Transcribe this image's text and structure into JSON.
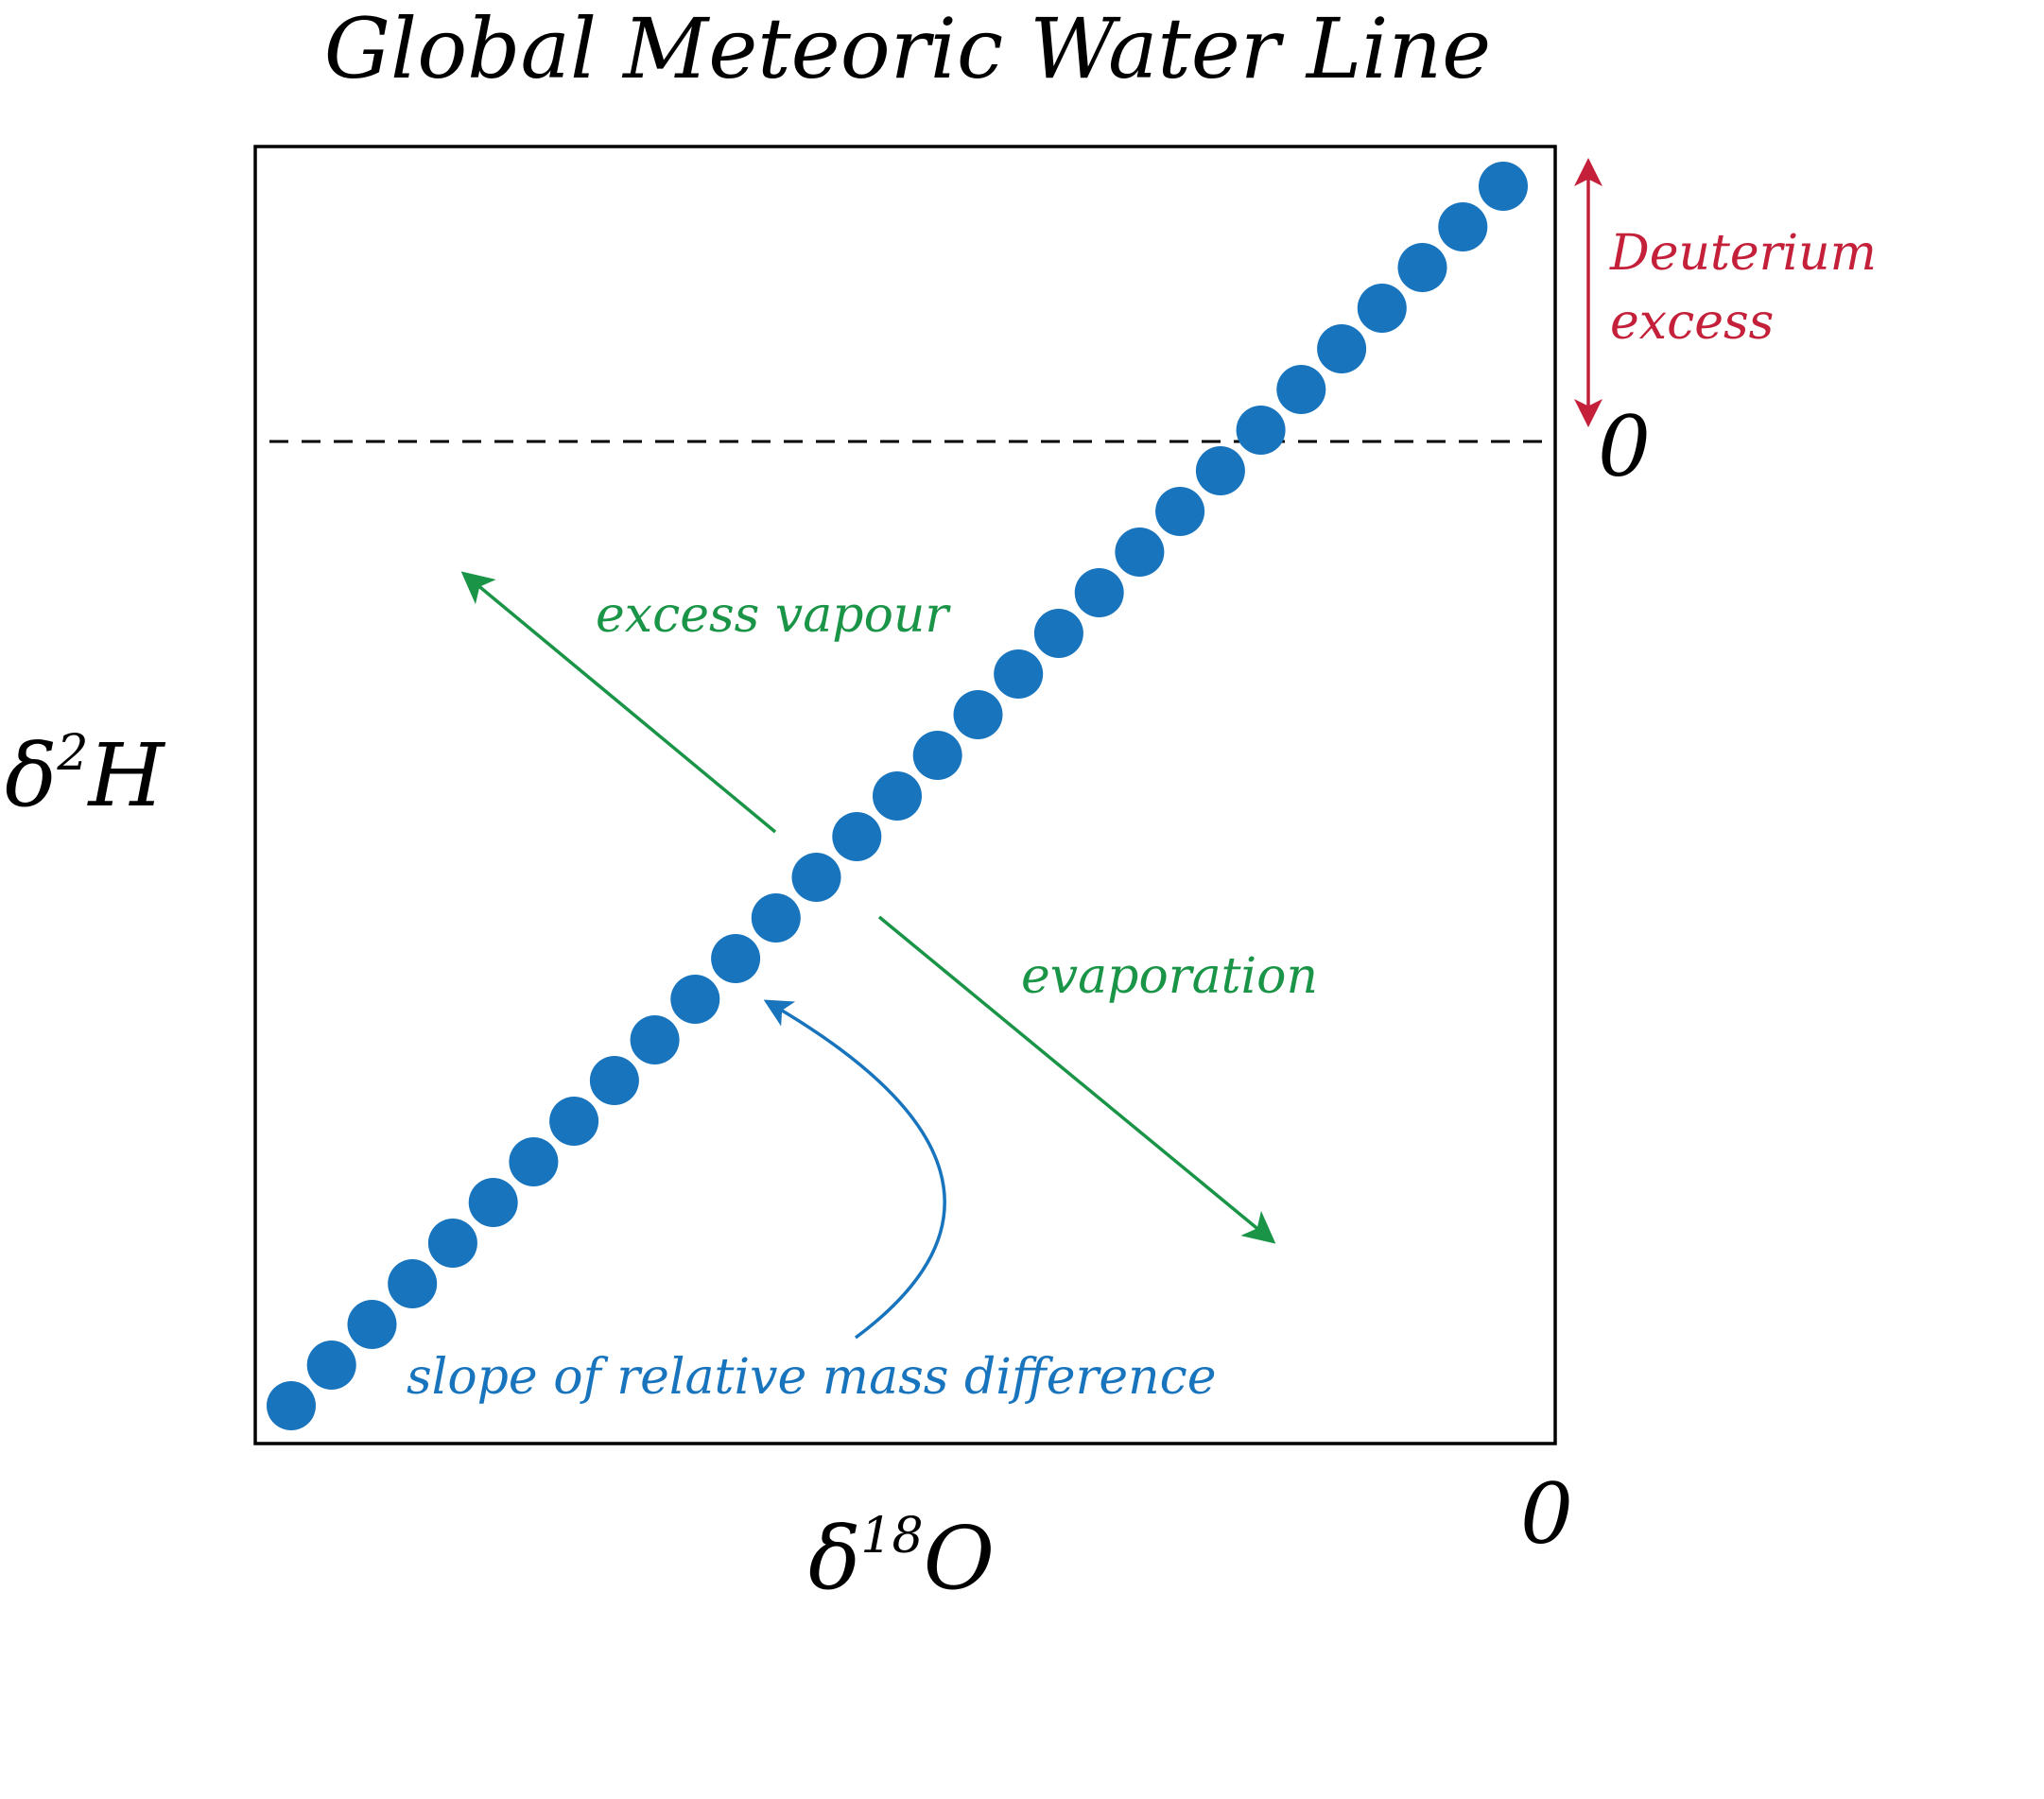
{
  "title": "Global Meteoric Water Line",
  "axes": {
    "x_label_base": "δ",
    "x_label_sup": "18",
    "x_label_tail": "O",
    "y_label_base": "δ",
    "y_label_sup": "2",
    "y_label_tail": "H",
    "x_zero_label": "0",
    "y_zero_label": "0"
  },
  "annotations": {
    "deuterium_excess_line1": "Deuterium",
    "deuterium_excess_line2": "excess",
    "excess_vapour": "excess vapour",
    "evaporation": "evaporation",
    "slope": "slope of relative mass difference"
  },
  "colors": {
    "points": "#1874bd",
    "green_arrows": "#1a9447",
    "red_arrow": "#c4203a",
    "blue_arrow": "#1874bd",
    "frame": "#000000"
  },
  "series": {
    "point_count": 31
  }
}
